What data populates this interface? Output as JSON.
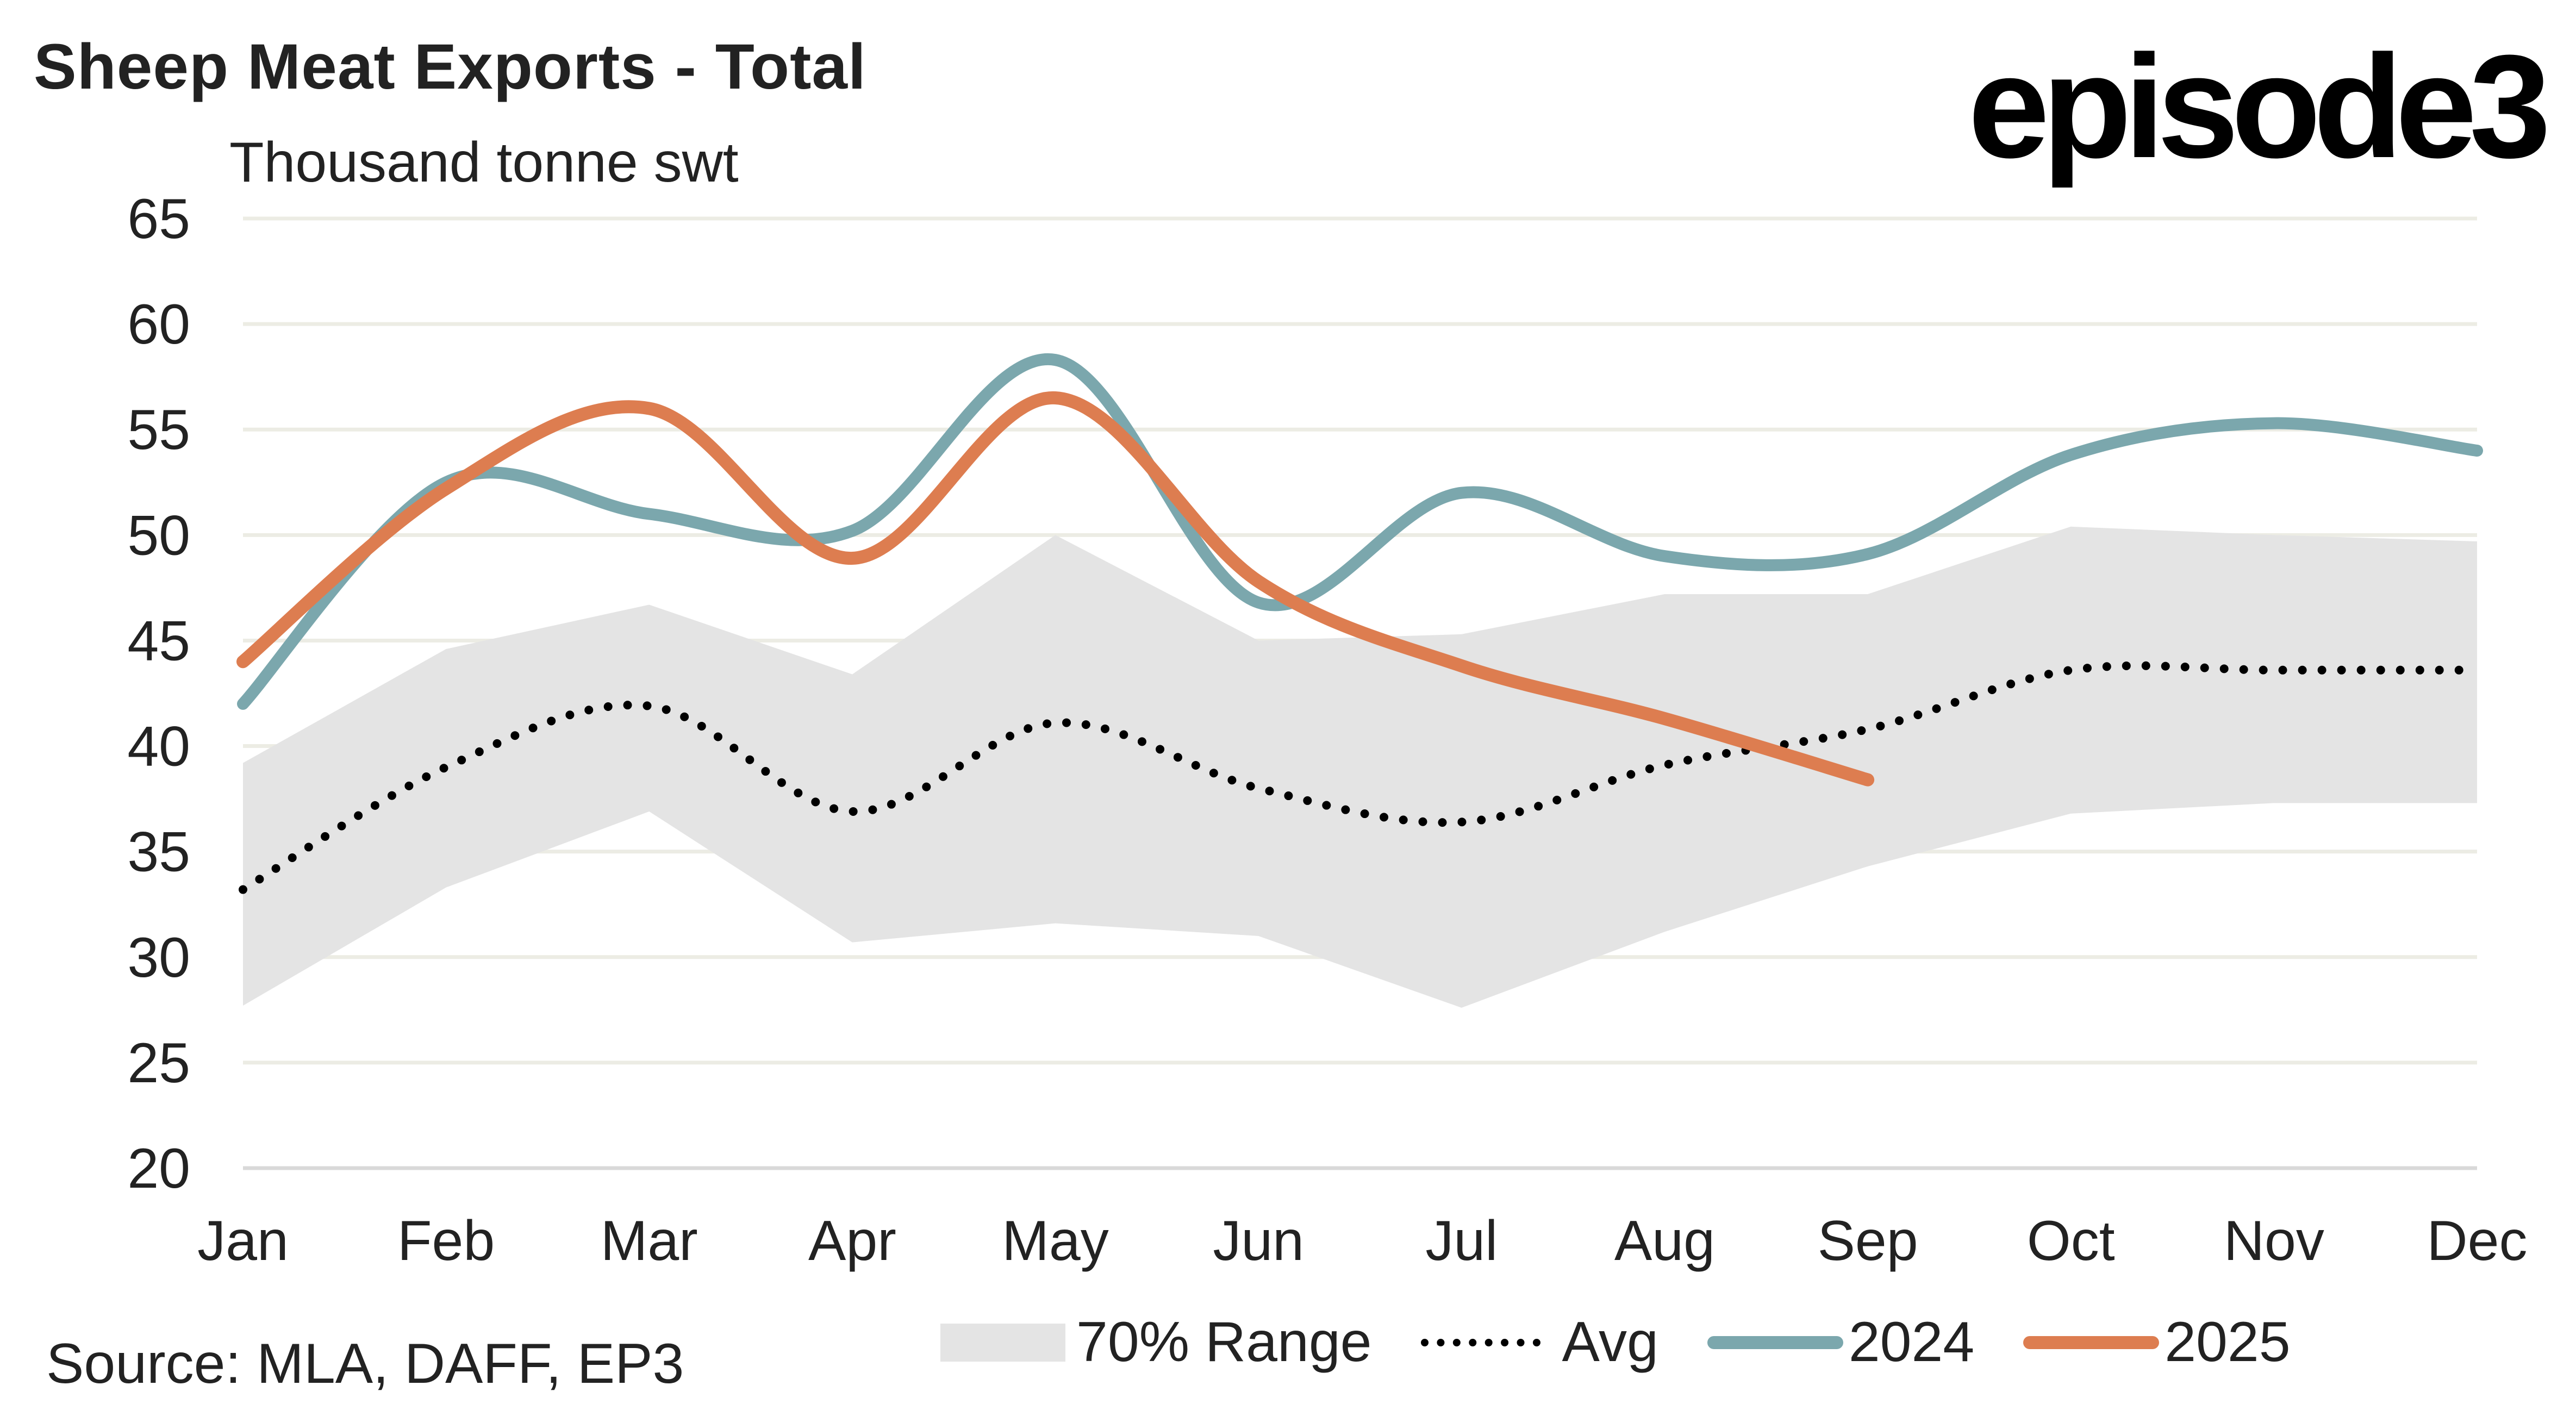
{
  "header": {
    "title": "Sheep Meat Exports - Total",
    "logo": "episode3",
    "unit": "Thousand tonne swt"
  },
  "footer": {
    "source": "Source: MLA, DAFF, EP3"
  },
  "colors": {
    "range": "#E4E4E4",
    "avg": "#000000",
    "s2024": "#7BA7AD",
    "s2025": "#DD7D50",
    "grid": "#ECECE4"
  },
  "legend": [
    {
      "key": "range",
      "label": "70% Range"
    },
    {
      "key": "avg",
      "label": "Avg"
    },
    {
      "key": "s2024",
      "label": "2024"
    },
    {
      "key": "s2025",
      "label": "2025"
    }
  ],
  "chart_data": {
    "type": "line",
    "title": "Sheep Meat Exports - Total",
    "ylabel": "Thousand tonne swt",
    "xlabel": "",
    "ylim": [
      20,
      65
    ],
    "yticks": [
      20,
      25,
      30,
      35,
      40,
      45,
      50,
      55,
      60,
      65
    ],
    "grid": true,
    "legend_position": "bottom",
    "categories": [
      "Jan",
      "Feb",
      "Mar",
      "Apr",
      "May",
      "Jun",
      "Jul",
      "Aug",
      "Sep",
      "Oct",
      "Nov",
      "Dec"
    ],
    "range": {
      "name": "70% Range",
      "upper": [
        39.2,
        44.6,
        46.7,
        43.4,
        50.0,
        45.0,
        45.3,
        47.2,
        47.2,
        50.4,
        50.0,
        49.7
      ],
      "lower": [
        27.7,
        33.3,
        36.9,
        30.7,
        31.6,
        31.0,
        27.6,
        31.2,
        34.3,
        36.8,
        37.3,
        37.3
      ]
    },
    "series": [
      {
        "name": "Avg",
        "values": [
          33.2,
          39.0,
          41.9,
          36.9,
          41.1,
          38.0,
          36.4,
          39.1,
          40.8,
          43.6,
          43.6,
          43.6
        ]
      },
      {
        "name": "2024",
        "values": [
          42.0,
          52.5,
          51.0,
          50.2,
          58.3,
          46.8,
          52.0,
          49.0,
          49.1,
          53.8,
          55.3,
          54.0
        ]
      },
      {
        "name": "2025",
        "values": [
          44.0,
          52.2,
          56.0,
          48.9,
          56.5,
          47.8,
          43.8,
          41.3,
          38.4,
          null,
          null,
          null
        ]
      }
    ]
  }
}
